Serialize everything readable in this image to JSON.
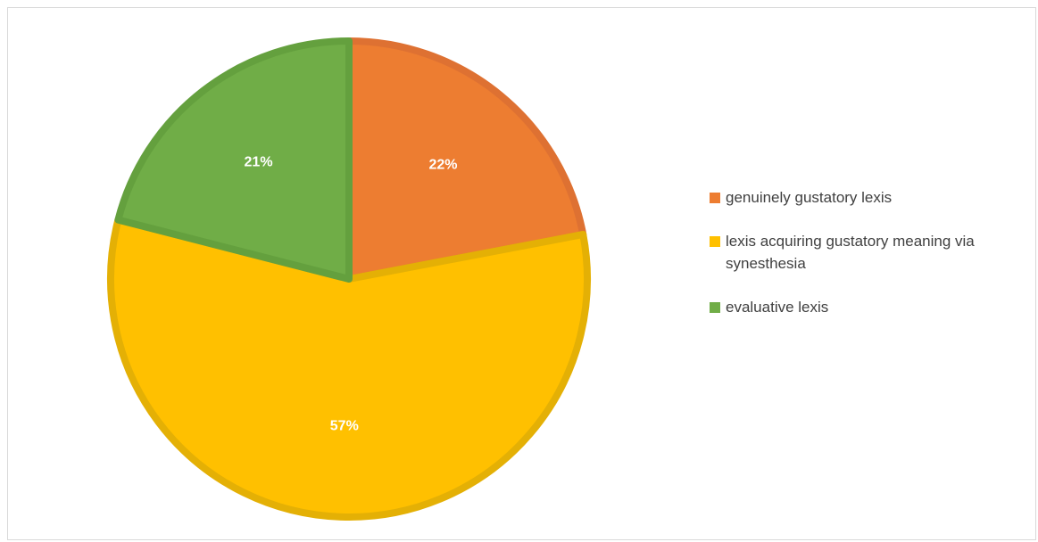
{
  "chart_data": {
    "type": "pie",
    "title": "",
    "slices": [
      {
        "label": "genuinely gustatory lexis",
        "value": 22,
        "value_label": "22%",
        "color": "#ED7D31",
        "edge": "#DE7132"
      },
      {
        "label": "lexis acquiring gustatory meaning via synesthesia",
        "value": 57,
        "value_label": "57%",
        "color": "#FFC000",
        "edge": "#E4B005"
      },
      {
        "label": "evaluative lexis",
        "value": 21,
        "value_label": "21%",
        "color": "#70AD47",
        "edge": "#64A03E"
      }
    ],
    "legend_position": "right",
    "start_angle": "12 o'clock",
    "direction": "clockwise"
  }
}
